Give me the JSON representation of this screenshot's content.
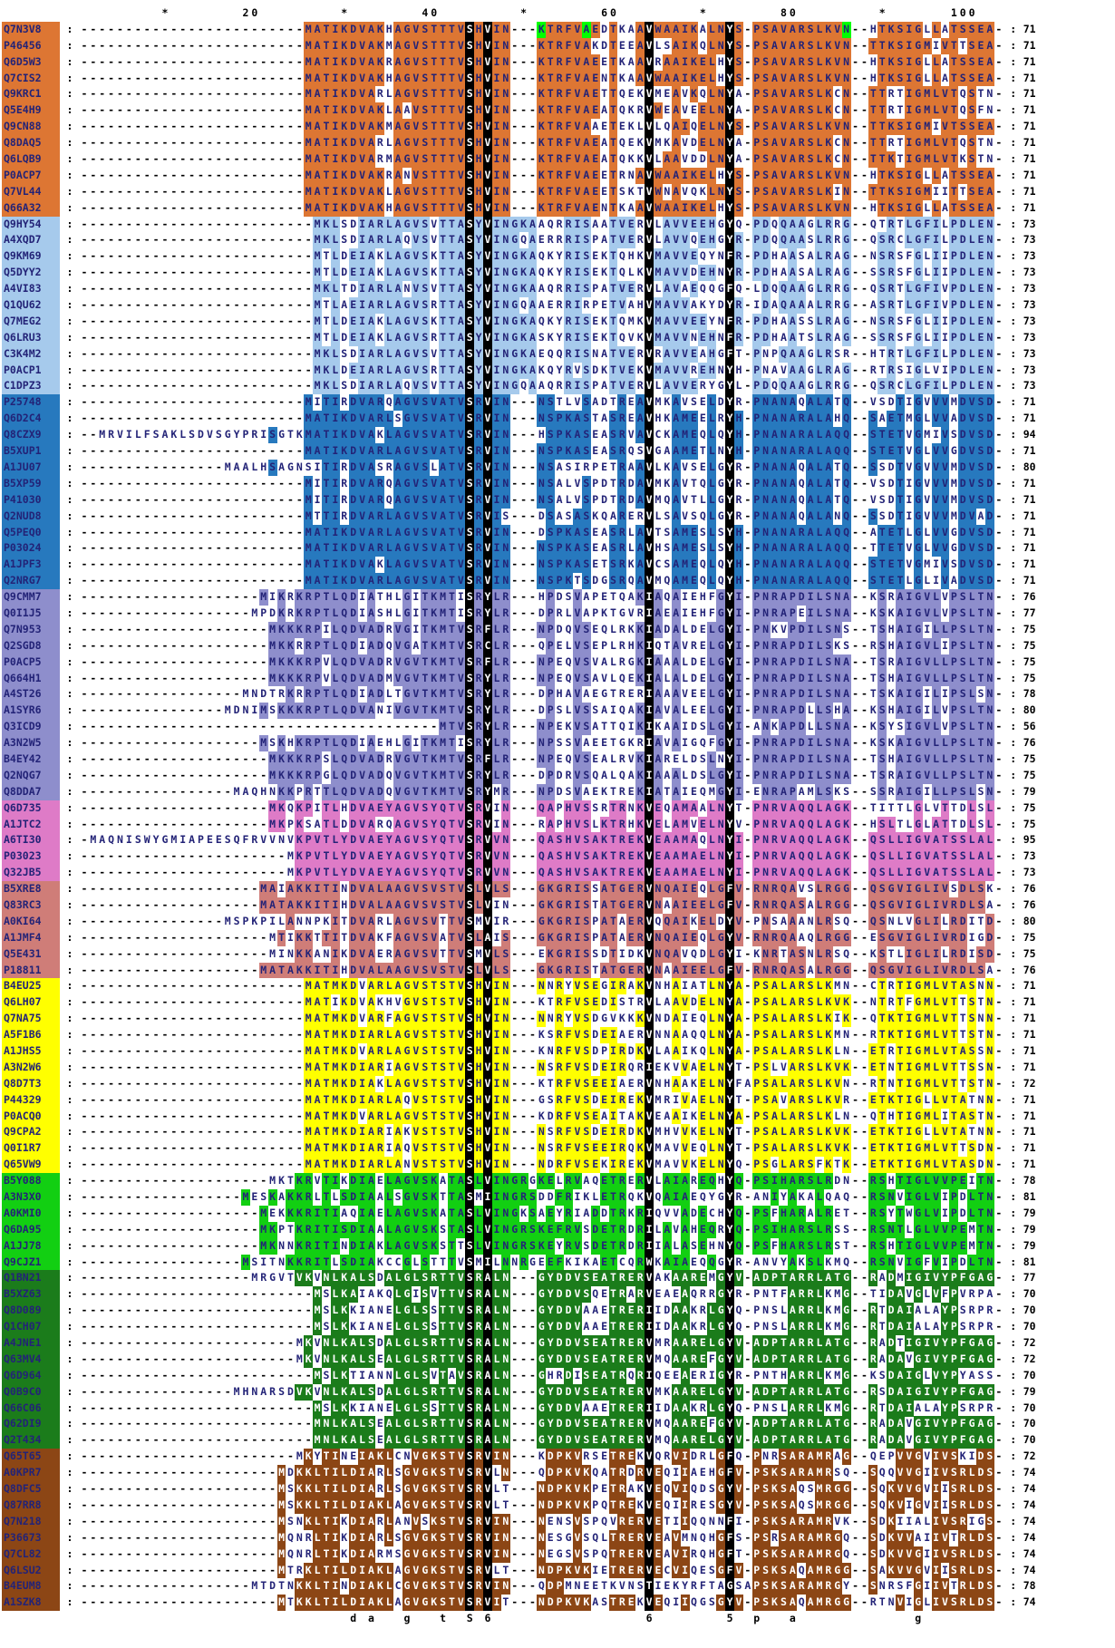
{
  "alignment": {
    "length": 103,
    "black_columns": [
      44,
      46,
      64,
      73
    ],
    "highlight_color": "#00FF00",
    "special_highlights": {
      "Q7N3V8": [
        52,
        57,
        86
      ]
    },
    "ruler": {
      "numbers": [
        20,
        40,
        60,
        80,
        100
      ],
      "stars": [
        10,
        30,
        50,
        70,
        90
      ]
    },
    "consensus": {
      "31": "d",
      "33": "a",
      "37": "g",
      "41": "t",
      "44": "S",
      "46": "6",
      "64": "6",
      "73": "5",
      "76": "p",
      "80": "a",
      "94": "g"
    },
    "blocks": [
      {
        "name": "group-1",
        "color": "#DD7633",
        "light_text": false,
        "rows": [
          {
            "id": "Q7N3V8",
            "aln": "25|MATIKDVAKHAGVSTTTVSHVIN---KTRFVAEDTKAAVWAAIKALNYS-PSAVARSLKVN--HTKSIGLLATSSEA-",
            "num": 71
          },
          {
            "id": "P46456",
            "aln": "25|MATIKDVAKMAGVSTTTVSHVIN---KTRFVAKDTEEAVLSAIKQLNYS-PSAVARSLKVN--TTKSIGMIVTTSEA-",
            "num": 71
          },
          {
            "id": "Q6D5W3",
            "aln": "25|MATIKDVAKRAGVSTTTVSHVIN---KTRFVAEETKAAVRAAIKELHYS-PSAVARSLKVN--HTKSIGLLATSSEA-",
            "num": 71
          },
          {
            "id": "Q7CIS2",
            "aln": "25|MATIKDVAKHAGVSTTTVSHVIN---KTRFVAENTKAAVWAAIKELHYS-PSAVARSLKVN--HTKSIGLLATSSEA-",
            "num": 71
          },
          {
            "id": "Q9KRC1",
            "aln": "25|MATIKDVARLAGVSTTTVSHVIN---KTRFVAETTQEKVMEAVKQLNYA-PSAVARSLKCN--TTRTIGMLVTQSTN-",
            "num": 71
          },
          {
            "id": "Q5E4H9",
            "aln": "25|MATIKDVAKLAAVSTTTVSHVIN---KTRFVAEATQKRVWEAVEELNYA-PSAVARSLKCN--TTRTIGMLVTQSFN-",
            "num": 71
          },
          {
            "id": "Q9CN88",
            "aln": "25|MATIKDVAKMAGVSTTTVSHVIN---KTRFVAAETEKLVLQAIQELNYS-PSAVARSLKVN--TTKSIGMIVTSSEA-",
            "num": 71
          },
          {
            "id": "Q8DAQ5",
            "aln": "25|MATIKDVARLAGVSTTTVSHVIN---KTRFVAEATQEKVMKAVDELNYA-PSAVARSLKCN--TTRTIGMLVTQSTN-",
            "num": 71
          },
          {
            "id": "Q6LQB9",
            "aln": "25|MATIKDVARMAGVSTTTVSHVIN---KTRFVAEATQKKVLAAVDDLNYA-PSAVARSLKCN--TTKTIGMLVTKSTN-",
            "num": 71
          },
          {
            "id": "P0ACP7",
            "aln": "25|MATIKDVAKRANVSTTTVSHVIN---KTRFVAEETRNAVWAAIKELHYS-PSAVARSLKVN--HTKSIGLLATSSEA-",
            "num": 71
          },
          {
            "id": "Q7VL44",
            "aln": "25|MATIKDVAKLAGVSTTTVSHVIN---KTRFVAEETSKTVWNAVQKLNYS-PSAVARSLKIN--TTKSIGMIITTSEA-",
            "num": 71
          },
          {
            "id": "Q66A32",
            "aln": "25|MATIKDVAKHAGVSTTTVSHVIN---KTRFVAENTKAAVWAAIKELHYS-PSAVARSLKVN--HTKSIGLLATSSEA-",
            "num": 71
          }
        ]
      },
      {
        "name": "group-2",
        "color": "#A6CAEC",
        "light_text": false,
        "rows": [
          {
            "id": "Q9HY54",
            "aln": "26|MKLSDIARLAGVSVTTASYVINGKAAQRRISAATVERVLAVVEEHGYQ-PDQQAAGLRRG--QTRTLGFILPDLEN-",
            "num": 73
          },
          {
            "id": "A4XQD7",
            "aln": "26|MKLSDIARLAQVSVTTASYVINGQAERRRISPATVERVLAVVQEHGYR-PDQQAASLRRG--QSRCLGFILPDLEN-",
            "num": 73
          },
          {
            "id": "Q9KM69",
            "aln": "26|MTLDEIAKLAGVSKTTASYVINGKAQKYRISEKTQHKVMAVVEQYNFR-PDHAASALRAG--NSRSFGLIIPDLEN-",
            "num": 73
          },
          {
            "id": "Q5DYY2",
            "aln": "26|MTLDEIAKLAGVSKTTASYVINGKAQKYRISEKTQLKVMAVVDEHNYR-PDHAASALRAG--SSRSFGLIIPDLEN-",
            "num": 73
          },
          {
            "id": "A4VI83",
            "aln": "26|MKLTDIARLANVSVTTASYVINGKAAQRRISPATVERVLAVAEQQGFQ-LDQQAAGLRRG--QSRTLGFIVPDLEN-",
            "num": 73
          },
          {
            "id": "Q1QU62",
            "aln": "26|MTLAEIARLAGVSRTTASYVINGQAAERRIRPETVAHVMAVVAKYDYR-IDAQAAALRRG--ASRTLGFIVPDLEN-",
            "num": 73
          },
          {
            "id": "Q7MEG2",
            "aln": "26|MTLDEIAKLAGVSKTTASYVINGKAQKYRISEKTQMKVMAVVEEYNFR-PDHAASSLRAG--NSRSFGLIIPDLEN-",
            "num": 73
          },
          {
            "id": "Q6LRU3",
            "aln": "26|MTLDEIAKLAGVSRTTASYVINGKASKYRISEKTQVKVMAVVNEHNFR-PDHAATSLRAG--SSRSFGLIIPDLEN-",
            "num": 73
          },
          {
            "id": "C3K4M2",
            "aln": "26|MKLSDIARLAGVSVTTASYVINGKAEQQRISNATVERVRAVVEAHGFT-PNPQAAGLRSR--HTRTLGFILPDLEN-",
            "num": 73
          },
          {
            "id": "P0ACP1",
            "aln": "26|MKLDEIARLAGVSRTTASYVINGKAKQYRVSDKTVEKVMAVVREHNYH-PNAVAAGLRAG--RTRSIGLVIPDLEN-",
            "num": 73
          },
          {
            "id": "C1DPZ3",
            "aln": "26|MKLSDIARLAQVSVTTASYVINGQAAQRRISPATVERVLAVVERYGYL-PDQQAAGLRRG--QSRCLGFILPDLEN-",
            "num": 73
          }
        ]
      },
      {
        "name": "group-3",
        "color": "#2779BE",
        "light_text": false,
        "rows": [
          {
            "id": "P25748",
            "aln": "25|MITIRDVARQAGVSVATVSRVIN---NSTLVSADTREAVMKAVSELDYR-PNANAQALATQ--VSDTIGVVVMDVSD-",
            "num": 71
          },
          {
            "id": "Q6D2C4",
            "aln": "25|MATIKDVARLSGVSVATVSRVIN---NSPKASTASREAVHKAMEELRYH-PNANARALAHQ--SAETMGLVVADVSD-",
            "num": 71
          },
          {
            "id": "Q8CZX9",
            "aln": "2|MRVILFSAKLSDVSGYPRISGTKMATIKDVAKLAGVSVATVSRVIN---HSPKASEASRVAVCKAMEQLQYH-PNANARALAQQ--STETVGMIVSDVSD-",
            "num": 94
          },
          {
            "id": "B5XUP1",
            "aln": "25|MATIKDVARLAGVSVATVSRVIN---NSPKASEASRQSVGAAMETLNYH-PNANARALAQQ--STETVGLVVGDVSD-",
            "num": 71
          },
          {
            "id": "A1JU07",
            "aln": "16|MAALHSAGNSITIRDVASRAGVSLATVSRVIN---NSASIRPETRAAVLKAVSELGYR-PNANAQALATQ--SSDTVGVVVMDVSD-",
            "num": 80
          },
          {
            "id": "B5XP59",
            "aln": "25|MITIRDVARQAGVSVATVSRVIN---NSALVSPDTRDAVMKAVTQLGYR-PNANAQALATQ--VSDTIGVVVMDVSD-",
            "num": 71
          },
          {
            "id": "P41030",
            "aln": "25|MITIRDVARQAGVSVATVSRVIN---NSALVSPDTRDAVMQAVTLLGYR-PNANAQALATQ--VSDTIGVVVMDVSD-",
            "num": 71
          },
          {
            "id": "Q2NUD8",
            "aln": "25|MTTIRDVARLAGVSVATVSRVIS---DSASASKQARERVLSAVSQLGYR-PNANAQALANQ--SSDTIGVVVMDVAD-",
            "num": 71
          },
          {
            "id": "Q5PEQ0",
            "aln": "25|MATIKDVARLAGVSVATVSRVIN---DSPKASEASRLAVTSAMESLSYH-PNANARALAQQ--ATETLGLVVGDVSD-",
            "num": 71
          },
          {
            "id": "P03024",
            "aln": "25|MATIKDVARLAGVSVATVSRVIN---NSPKASEASRLAVHSAMESLSYH-PNANARALAQQ--TTETVGLVVGDVSD-",
            "num": 71
          },
          {
            "id": "A1JPF3",
            "aln": "25|MATIKDVAKLAGVSVATVSRVIN---NSPKASETSRKAVCSAMEQLQYH-PNANARALAQQ--STETVGMIVSDVSD-",
            "num": 71
          },
          {
            "id": "Q2NRG7",
            "aln": "25|MATIKDVARLAGVSVATVSRVIN---NSPKTSDGSRQAVMQAMEQLQYH-PNANARALAQQ--STETLGLIVADVSD-",
            "num": 71
          }
        ]
      },
      {
        "name": "group-4",
        "color": "#8E8ECC",
        "light_text": false,
        "rows": [
          {
            "id": "Q9CMM7",
            "aln": "20|MIKRKRPTLQDIATHLGITKMTISRYLR---HPDSVAPETQAKIAQAIEHFGYI-PNRAPDILSNA--KSRAIGVLVPSLTN-",
            "num": 76
          },
          {
            "id": "Q0I1J5",
            "aln": "19|MPDKRKRPTLQDIASHLGITKMTISRYLR---DPRLVAPKTGVRIAEAIEHFGYI-PNRAPEILSNA--KSKAIGVLVPSLTN-",
            "num": 77
          },
          {
            "id": "Q7N953",
            "aln": "21|MKKKRPILQDVADRVGITKMTVSRFLR---NPDQVSEQLRKKIADALDELGYI-PNKVPDILSNS--TSHAIGILLPSLTN-",
            "num": 75
          },
          {
            "id": "Q2SGD8",
            "aln": "21|MKKRRPTLQDIADQVGATKMTVSRCLR---QPELVSEPLRHKIQTAVRELGYI-PNRAPDILSKS--RSHAIGVLIPSLTN-",
            "num": 75
          },
          {
            "id": "P0ACP5",
            "aln": "21|MKKKRPVLQDVADRVGVTKMTVSRFLR---NPEQVSVALRGKIAAALDELGYI-PNRAPDILSNA--TSRAIGVLLPSLTN-",
            "num": 75
          },
          {
            "id": "Q664H1",
            "aln": "21|MKKKRPVLQDVADMVGVTKMTVSRYLR---NPEQVSAVLQEKIALALDELGYI-PNRAPDILSNA--TSHAIGVLLPSLTN-",
            "num": 75
          },
          {
            "id": "A4ST26",
            "aln": "18|MNDTRKRRPTLQDIADLTGVTKMTVSRYLR---DPHAVAEGTRERIAAAVEELGYI-PNRAPDILSNA--TSKAIGILIPSLSN-",
            "num": 78
          },
          {
            "id": "A1SYR6",
            "aln": "16|MDNIMSKKKRPTLQDVANIVGVTKMTVSRYLR---DPSLVSSAIQAKIAVALEELGYI-PNRAPDLLSHA--KSHAIGILVPSLTN-",
            "num": 80
          },
          {
            "id": "Q3ICD9",
            "aln": "40|MTVSRYLR---NPEKVSATTQIKIKAAIDSLGYI-ANKAPDLLSNA--KSYSIGVLVPSLTN-",
            "num": 56
          },
          {
            "id": "A3N2W5",
            "aln": "20|MSKHKRPTLQDIAEHLGITKMTISRYLR---NPSSVAEETGKRIAVAIGQFGYI-PNRAPDILSNA--KSKAIGVLLPSLTN-",
            "num": 76
          },
          {
            "id": "B4EY42",
            "aln": "21|MKKKRPSLQDVADRVGVTKMTVSRFLR---NPEQVSEALRVKIARELDSLNYI-PNRAPDILSNA--TSHAIGVLLPSLTN-",
            "num": 75
          },
          {
            "id": "Q2NQG7",
            "aln": "21|MKKKRPGLQDVADQVGVTKMTVSRYLR---DPDRVSQALQAKIAAALDSLGYI-PNRAPDILSNA--TSRAIGVLLPSLTN-",
            "num": 75
          },
          {
            "id": "Q8DDA7",
            "aln": "17|MAQHNKKPRTTLQDVADQVGVTKMTVSRYMR---NPDSVAEKTREKIATAIEQMGYI-ENRAPAMLSKS--SSRAIGILLPSLSN-",
            "num": 79
          }
        ]
      },
      {
        "name": "group-5",
        "color": "#DE7BC7",
        "light_text": false,
        "rows": [
          {
            "id": "Q6D735",
            "aln": "21|MKQKPITLHDVAEYAGVSYQTVSRVIN---QAPHVSSRTRNKVEQAMAALNYT-PNRVAQQLAGK--TITTLGLVTTDLSL-",
            "num": 75
          },
          {
            "id": "A1JTC2",
            "aln": "21|MKPKSATLDDVARQAGVSYQTVSRVIN---RAPHVSLKTRHKVELAMVELNYV-PNRVAQQLAGK--HSLTLGLATTDLSL-",
            "num": 75
          },
          {
            "id": "A6TI30",
            "aln": "1|MAQNISWYGMIAPEESQFRVVNVKPVTLYDVAEYAGVSYQTVSRVVN---QASHVSAKTREKVEAAMAQLNYI-PNRVAQQLAGK--QSLLIGVATSSLAL-",
            "num": 95
          },
          {
            "id": "P03023",
            "aln": "23|MKPVTLYDVAEYAGVSYQTVSRVVN---QASHVSAKTREKVEAAMAELNYI-PNRVAQQLAGK--QSLLIGVATSSLAL-",
            "num": 73
          },
          {
            "id": "Q32JB5",
            "aln": "23|MKPVTLYDVAEYAGVSYQTVSRVVN---QASHVSAKTREKVEAAMAELNYI-PNRVAQQLAGK--QSLLIGVATSSLAL-",
            "num": 73
          }
        ]
      },
      {
        "name": "group-6",
        "color": "#CF7D78",
        "light_text": false,
        "rows": [
          {
            "id": "B5XRE8",
            "aln": "20|MAIAKKITINDVALAAGVSVSTVSLVLS---GKGRISSATGERVNQAIEQLGFV-RNRQAVSLRGG--QSGVIGLIVSDLSK-",
            "num": 76
          },
          {
            "id": "Q83RC3",
            "aln": "20|MATAKKITIHDVALAAGVSVSTVSLVIN---GKGRISTATGERVNAAIEELGFV-RNRQASALRGG--QSGVIGLIVRDLSA-",
            "num": 76
          },
          {
            "id": "A0KI64",
            "aln": "16|MSPKPILANNPKITDVARLAGVSVTTVSMVIR---GKGRISPATAERVQQAIKELDYV-PNSAAANLRSQ--QSNLVGLILRDITD-",
            "num": 80
          },
          {
            "id": "A1JMF4",
            "aln": "21|MTIKKTTITDVAKFAGVSVATVSLAIS---GKGRISPATAERVNQAIEQLGYV-RNRQAAQLRGG--ESGVIGLIVRDIGD-",
            "num": 75
          },
          {
            "id": "Q5E431",
            "aln": "21|MINKKANIKDVAERAGVSVTTVSMVLS---EKGRISSDTIDKVNQAVQDLGYI-KNRTASNLRSQ--KSTLIGLILRDISD-",
            "num": 75
          },
          {
            "id": "P18811",
            "aln": "20|MATAKKITIHDVALAAGVSVSTVSLVLS---GKGRISTATGERVNAAIEELGFV-RNRQASALRGG--QSGVIGLIVRDLSA-",
            "num": 76
          }
        ]
      },
      {
        "name": "group-7",
        "color": "#FFFF00",
        "light_text": false,
        "rows": [
          {
            "id": "B4EU25",
            "aln": "25|MATMKDVARLAGVSTSTVSHVIN---NNRYVSEGIRAKVNHAIATLNYA-PSALARSLKMN--CTRTIGMLVTASNN-",
            "num": 71
          },
          {
            "id": "Q6LH07",
            "aln": "25|MATIKDVAKHVGVSTSTVSHVIN---KTRFVSEDISTRVLAAVDELNYA-PSALARSLKVK--NTRTFGMLVTTSTN-",
            "num": 71
          },
          {
            "id": "Q7NA75",
            "aln": "25|MATMKDVARFAGVSTSTVSHVIN---NNRYVSDGVKKKVNDAIEQLNYA-PSALARSLKIK--QTKTIGMLVTTSNN-",
            "num": 71
          },
          {
            "id": "A5F1B6",
            "aln": "25|MATMKDIARLAGVSTSTVSHVIN---KSRFVSDEIAERVNNAAQQLNYA-PSALARSLKMN--RTKTIGMLVTTSTN-",
            "num": 71
          },
          {
            "id": "A1JHS5",
            "aln": "25|MATMKDVARLAGVSTSTVSHVIN---KNRFVSDPIRDKVLAAIKQLNYA-PSALARSLKLN--ETRTIGMLVTASSN-",
            "num": 71
          },
          {
            "id": "A3N2W6",
            "aln": "25|MATMKDIARIAGVSTSTVSHVIN---NSRFVSDEIRQRIEKVVAELNYT-PSLVARSLKVK--ETNTIGMLVTTSSN-",
            "num": 71
          },
          {
            "id": "Q8D7T3",
            "aln": "25|MATMKDIAKLAGVSTSTVSHVIN---KTRFVSEEIAERVNHAAKELNYFAPSALARSLKVN--RTNTIGMLVTTSTN-",
            "num": 72
          },
          {
            "id": "P44329",
            "aln": "25|MATMKDIARLAQVSTSTVSHVIN---GSRFVSDEIREKVMRIVAELNYT-PSAVARSLKVR--ETKTIGLLVTATNN-",
            "num": 71
          },
          {
            "id": "P0ACQ0",
            "aln": "25|MATMKDVARLAGVSTSTVSHVIN---KDRFVSEAITAKVEAAIKELNYA-PSALARSLKLN--QTHTIGMLITASTN-",
            "num": 71
          },
          {
            "id": "Q9CPA2",
            "aln": "25|MATMKDIARIAKVSTSTVSHVIN---NSRFVSDEIRDKVMHVVKELNYT-PSALARSLKVK--ETKTIGLLVTATNN-",
            "num": 71
          },
          {
            "id": "Q0I1R7",
            "aln": "25|MATMKDIARIAQVSTSTVSHVIN---NSRFVSEEIRQKVMAVVEQLNYT-PSALARSLKVK--ETKTIGMLVTTSDN-",
            "num": 71
          },
          {
            "id": "Q65VW9",
            "aln": "25|MATMKDIARLANVSTSTVSHVIN---NDRFVSEKIREKVMAVVKELNYQ-PSGLARSFKTK--ETKTIGMLVTASDN-",
            "num": 71
          }
        ]
      },
      {
        "name": "group-8",
        "color": "#12CF12",
        "light_text": false,
        "rows": [
          {
            "id": "B5Y088",
            "aln": "21|MKTKRVTIKDIAELAGVSKATASLVINGRGKELRVAQETRERVLAIAREQHYQ-PSIHARSLRDN--RSHTIGLVVPEITN-",
            "num": 78
          },
          {
            "id": "A3N3X0",
            "aln": "18|MESKAKKRLTLSDIAALSGVSKTTASMIINGRSDDFRIKLETRQKVQAIAEQYGYR-ANIYAKALQAQ--RSNVIGLVIPDLTN-",
            "num": 81
          },
          {
            "id": "A0KMI0",
            "aln": "20|MEKKKRITIAQIAELAGVSKATASLVINGKSAEYRIADDTRKRIQVVADECHYQ-PSFHARALRET--RSYTWGLVIPDLTN-",
            "num": 79
          },
          {
            "id": "Q6DA95",
            "aln": "20|MKPTKRITISDIAALAGVSKSTASLVINGRSKEFRVSDETRDRILAVAHEQRYQ-PSIHARSLRSS--RSNTLGLVVPEMTN-",
            "num": 79
          },
          {
            "id": "A1JJ78",
            "aln": "20|MKNNKRITINDIAKLAGVSKSTTSLVINGRSKEYRVSDETRDRIIALASEHNYQ-PSFHARSLRST--RSHTIGLVVPEMTN-",
            "num": 79
          },
          {
            "id": "Q9CJZ1",
            "aln": "18|MSITNKKRITLSDIAKCCGLSTTTVSMILNNRGEEFKIKAETCQRWKAIAEQQGYR-ANVYAKSLKMQ--RSNVIGFVIPDLTN-",
            "num": 81
          }
        ]
      },
      {
        "name": "group-9",
        "color": "#1B7C1B",
        "light_text": true,
        "rows": [
          {
            "id": "Q1BN21",
            "aln": "19|MRGVTVKVNLKALSDALGLSRTTVSRALN---GYDDVSEATRERVAKAAREMGYV-ADPTARRLATG--RADMIGIVYPFGAG-",
            "num": 77
          },
          {
            "id": "B5XZ63",
            "aln": "26|MSLKAIAKQLGISVTTVSRALN---GYDDVSQETRARVEAEAQRRGYR-PNTFARRLKMG--TIDAVGLVFPVRPA-",
            "num": 70
          },
          {
            "id": "Q8D089",
            "aln": "26|MSLKKIANELGLSSTTVSRALN---GYDDVAAETRERIIDAAKRLGYQ-PNSLARRLKMG--RTDAIALAYPSRPR-",
            "num": 70
          },
          {
            "id": "Q1CH07",
            "aln": "26|MSLKKIANELGLSSTTVSRALN---GYDDVAAETRERIIDAAKRLGYQ-PNSLARRLKMG--RTDAIALAYPSRPR-",
            "num": 70
          },
          {
            "id": "A4JNE1",
            "aln": "24|MKVNLKALSDALGLSRTTVSRALN---GYDDVSEATRERVMRAARELGYV-ADPTARRLATG--RADTIGIVYPFGAG-",
            "num": 72
          },
          {
            "id": "Q63MV4",
            "aln": "24|MKVNLKALSEALGLSRTTVSRALN---GYDDVSEATRERVMQAAREFGYV-ADPTARRLATG--RADAVGIVYPFGAG-",
            "num": 72
          },
          {
            "id": "Q6D964",
            "aln": "26|MSLKTIANNLGLSVTAVSRALN---GHRDISEATRQRIQEEAERIGYR-PNTHARRLKMG--KSDAIGLVYPYASS-",
            "num": 70
          },
          {
            "id": "Q0B9C0",
            "aln": "17|MHNARSDVKVNLKALSDALGLSRTTVSRALN---GYDDVSEATRERVMKAARELGYV-ADPTARRLATG--RSDAIGIVYPFGAG-",
            "num": 79
          },
          {
            "id": "Q66C06",
            "aln": "26|MSLKKIANELGLSSTTVSRALN---GYDDVAAETRERIIDAAKRLGYQ-PNSLARRLKMG--RTDAIALAYPSRPR-",
            "num": 70
          },
          {
            "id": "Q62DI9",
            "aln": "26|MNLKALSEALGLSRTTVSRALN---GYDDVSEATRERVMQAAREFGYV-ADPTARRLATG--RADAVGIVYPFGAG-",
            "num": 70
          },
          {
            "id": "Q2T434",
            "aln": "26|MNLKALSEALGLSRTTVSRALN---GYDDVSEATRERVMQAARELGYV-ADPTARRLATG--RADAVGIVYPFGAG-",
            "num": 70
          }
        ]
      },
      {
        "name": "group-10",
        "color": "#8C4615",
        "light_text": true,
        "rows": [
          {
            "id": "Q65T65",
            "aln": "24|MKYTINEIAKLCNVGKSTVSRVIN---KDPKVRSETREKVQRVIDRLGFQ-PNRSARAMRAG--QEPVVGVIVSKIDS-",
            "num": 72
          },
          {
            "id": "A0KPR7",
            "aln": "22|MDKKLTILDIARLSGVGKSTVSRVLN---QDPKVKQATRDRVEQIIAEHGFV-PSKSARAMRSQ--SQQVVGIIVSRLDS-",
            "num": 74
          },
          {
            "id": "Q8DFC5",
            "aln": "22|MSKKLTILDIARLSGVGKSTVSRVLT---NDPKVKPETRAKVEQVIQDSGYV-PSKSAQSMRGG--SQKVVGVIISRLDS-",
            "num": 74
          },
          {
            "id": "Q87RR8",
            "aln": "22|MSKKLTILDIAKLAGVGKSTVSRVLT---NDPKVKPQTREKVEQIIRESGYV-PSKSAQSMRGG--SQKVIGVIISRLDS-",
            "num": 74
          },
          {
            "id": "Q7N218",
            "aln": "22|MSNKLTIKDIARLANVSKSTVSRVIN---NENSVSPQVRERVETIIQQNNFI-PSKSARAMRVK--SDKIIALIVSRIGS-",
            "num": 74
          },
          {
            "id": "P36673",
            "aln": "22|MQNRLTIKDIARLSGVGKSTVSRVIN---NESGVSQLTRERVEAVMNQHGFS-PSRSARAMRGQ--SDKVVAIIVTRLDS-",
            "num": 74
          },
          {
            "id": "Q7CL82",
            "aln": "22|MQNRLTIKDIARMSGVGKSTVSRVIN---NEGSVSPQTRERVEAVIRQHGFT-PSKSARAMRGQ--SDKVVGIIVSRLDS-",
            "num": 74
          },
          {
            "id": "Q6LSU2",
            "aln": "22|MTRKLTILDIAKLAGVGKSTVSRVLT---NDPKVKIETRERVECVIQESGFV-PSKSAQAMRGG--SAKVVGVIISRLDS-",
            "num": 74
          },
          {
            "id": "B4EUM8",
            "aln": "19|MTDTNKKLTINDIAKLCGVGKSTVSRVIN---QDPMNEETKVNSTIEKYRFTAGSAPSKSARAMRGY--SNRSFGIIVTRLDS-",
            "num": 78
          },
          {
            "id": "A1SZK8",
            "aln": "22|MTKKLTILDIAKLAGVGKSTVSRVIT---NDPKVKASTREKVEQIIQGSGYV-PSKSAQAMRGG--RTNVIGLIVSRLDS-",
            "num": 74
          }
        ]
      }
    ]
  }
}
